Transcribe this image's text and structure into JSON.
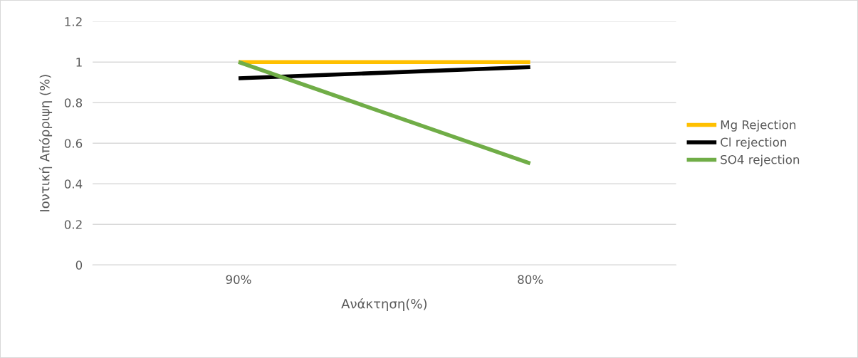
{
  "chart_data": {
    "type": "line",
    "xlabel": "Ανάκτηση(%)",
    "ylabel": "Ιοντική Απόρριψη (%)",
    "categories": [
      "90%",
      "80%"
    ],
    "series": [
      {
        "name": "Mg Rejection",
        "color": "#ffc000",
        "values": [
          1,
          1
        ]
      },
      {
        "name": "Cl rejection",
        "color": "#000000",
        "values": [
          0.92,
          0.975
        ]
      },
      {
        "name": "SO4 rejection",
        "color": "#70ad47",
        "values": [
          1,
          0.5
        ]
      }
    ],
    "ylim": [
      0,
      1.2
    ],
    "yticks": [
      0,
      0.2,
      0.4,
      0.6,
      0.8,
      1,
      {
        "value": 1.2,
        "label": "1.2"
      }
    ],
    "grid": "y",
    "legend": "right",
    "marker": "none",
    "line_style": "solid"
  }
}
